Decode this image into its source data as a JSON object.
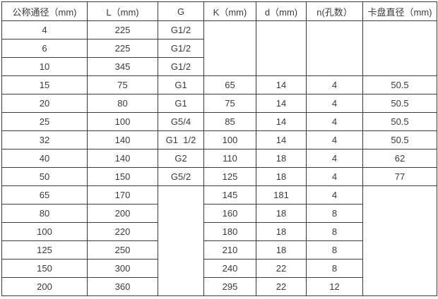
{
  "table": {
    "headers": [
      "公称通径（mm)",
      "L（mm)",
      "G",
      "K（mm)",
      "d（mm)",
      "n(孔数）",
      "卡盘直径（mm)"
    ],
    "rows": [
      [
        "4",
        "225",
        "G1/2",
        {
          "v": "",
          "rs": 3
        },
        {
          "v": "",
          "rs": 3
        },
        {
          "v": "",
          "rs": 3
        },
        {
          "v": "",
          "rs": 3
        }
      ],
      [
        "6",
        "225",
        "G1/2"
      ],
      [
        "10",
        "345",
        "G1/2"
      ],
      [
        "15",
        "75",
        "G1",
        "65",
        "14",
        "4",
        "50.5"
      ],
      [
        "20",
        "80",
        "G1",
        "75",
        "14",
        "4",
        "50.5"
      ],
      [
        "25",
        "100",
        "G5/4",
        "85",
        "14",
        "4",
        "50.5"
      ],
      [
        "32",
        "140",
        "G1  1/2",
        "100",
        "14",
        "4",
        "50.5"
      ],
      [
        "40",
        "140",
        "G2",
        "110",
        "18",
        "4",
        "62"
      ],
      [
        "50",
        "150",
        "G5/2",
        "125",
        "18",
        "4",
        "77"
      ],
      [
        "65",
        "170",
        {
          "v": "",
          "rs": 6
        },
        "145",
        "181",
        "4",
        {
          "v": "",
          "rs": 6
        }
      ],
      [
        "80",
        "200",
        "160",
        "18",
        "8"
      ],
      [
        "100",
        "220",
        "180",
        "18",
        "8"
      ],
      [
        "125",
        "250",
        "210",
        "18",
        "8"
      ],
      [
        "150",
        "300",
        "240",
        "22",
        "8"
      ],
      [
        "200",
        "360",
        "295",
        "22",
        "12"
      ]
    ],
    "colors": {
      "border": "#3b3b3b",
      "text": "#3a3a3a",
      "background": "#ffffff"
    }
  }
}
